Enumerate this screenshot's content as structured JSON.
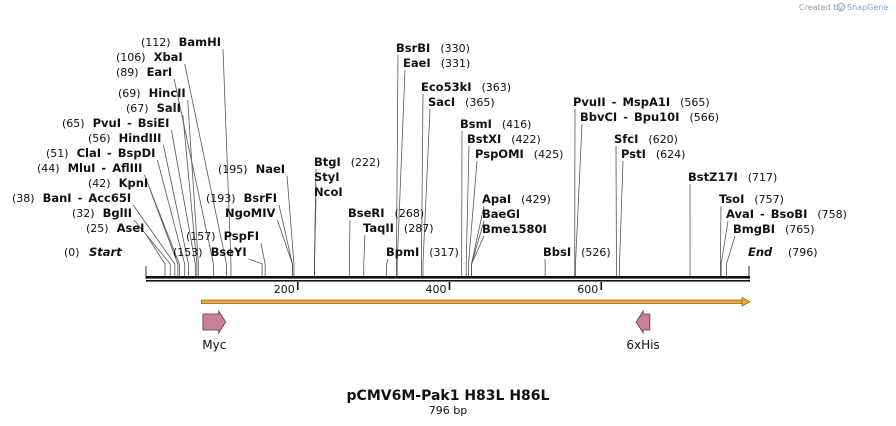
{
  "credit": {
    "label": "Created by",
    "brand": "SnapGene"
  },
  "map": {
    "title": "pCMV6M-Pak1 H83L H86L",
    "length_label": "796 bp",
    "length": 796,
    "start_label": "Start",
    "start_pos": "(0)",
    "end_label": "End",
    "end_pos": "(796)"
  },
  "ruler": {
    "ticks": [
      200,
      400,
      600
    ]
  },
  "sites": [
    {
      "pos": 25,
      "pos_label": "(25)",
      "names": [
        "AseI"
      ]
    },
    {
      "pos": 32,
      "pos_label": "(32)",
      "names": [
        "BglII"
      ]
    },
    {
      "pos": 38,
      "pos_label": "(38)",
      "names": [
        "BanI",
        "Acc65I"
      ]
    },
    {
      "pos": 42,
      "pos_label": "(42)",
      "names": [
        "KpnI"
      ]
    },
    {
      "pos": 44,
      "pos_label": "(44)",
      "names": [
        "MluI",
        "AflIII"
      ]
    },
    {
      "pos": 51,
      "pos_label": "(51)",
      "names": [
        "ClaI",
        "BspDI"
      ]
    },
    {
      "pos": 56,
      "pos_label": "(56)",
      "names": [
        "HindIII"
      ]
    },
    {
      "pos": 65,
      "pos_label": "(65)",
      "names": [
        "PvuI",
        "BsiEI"
      ]
    },
    {
      "pos": 67,
      "pos_label": "(67)",
      "names": [
        "SalI"
      ]
    },
    {
      "pos": 69,
      "pos_label": "(69)",
      "names": [
        "HincII"
      ]
    },
    {
      "pos": 89,
      "pos_label": "(89)",
      "names": [
        "EarI"
      ]
    },
    {
      "pos": 106,
      "pos_label": "(106)",
      "names": [
        "XbaI"
      ]
    },
    {
      "pos": 112,
      "pos_label": "(112)",
      "names": [
        "BamHI"
      ]
    },
    {
      "pos": 153,
      "pos_label": "(153)",
      "names": [
        "BseYI"
      ]
    },
    {
      "pos": 157,
      "pos_label": "(157)",
      "names": [
        "PspFI"
      ]
    },
    {
      "pos": 193,
      "pos_label": "(193)",
      "names": [
        "BsrFI"
      ]
    },
    {
      "pos": 193,
      "pos_label": "",
      "names": [
        "NgoMIV"
      ]
    },
    {
      "pos": 195,
      "pos_label": "(195)",
      "names": [
        "NaeI"
      ]
    },
    {
      "pos": 222,
      "pos_label": "(222)",
      "names": [
        "BtgI"
      ]
    },
    {
      "pos": 222,
      "pos_label": "",
      "names": [
        "StyI"
      ]
    },
    {
      "pos": 222,
      "pos_label": "",
      "names": [
        "NcoI"
      ]
    },
    {
      "pos": 268,
      "pos_label": "(268)",
      "names": [
        "BseRI"
      ]
    },
    {
      "pos": 287,
      "pos_label": "(287)",
      "names": [
        "TaqII"
      ]
    },
    {
      "pos": 317,
      "pos_label": "(317)",
      "names": [
        "BpmI"
      ]
    },
    {
      "pos": 330,
      "pos_label": "(330)",
      "names": [
        "BsrBI"
      ]
    },
    {
      "pos": 331,
      "pos_label": "(331)",
      "names": [
        "EaeI"
      ]
    },
    {
      "pos": 363,
      "pos_label": "(363)",
      "names": [
        "Eco53kI"
      ]
    },
    {
      "pos": 365,
      "pos_label": "(365)",
      "names": [
        "SacI"
      ]
    },
    {
      "pos": 416,
      "pos_label": "(416)",
      "names": [
        "BsmI"
      ]
    },
    {
      "pos": 422,
      "pos_label": "(422)",
      "names": [
        "BstXI"
      ]
    },
    {
      "pos": 425,
      "pos_label": "(425)",
      "names": [
        "PspOMI"
      ]
    },
    {
      "pos": 429,
      "pos_label": "(429)",
      "names": [
        "ApaI"
      ]
    },
    {
      "pos": 429,
      "pos_label": "",
      "names": [
        "BaeGI"
      ]
    },
    {
      "pos": 429,
      "pos_label": "",
      "names": [
        "Bme1580I"
      ]
    },
    {
      "pos": 526,
      "pos_label": "(526)",
      "names": [
        "BbsI"
      ]
    },
    {
      "pos": 565,
      "pos_label": "(565)",
      "names": [
        "PvuII",
        "MspA1I"
      ]
    },
    {
      "pos": 566,
      "pos_label": "(566)",
      "names": [
        "BbvCI",
        "Bpu10I"
      ]
    },
    {
      "pos": 620,
      "pos_label": "(620)",
      "names": [
        "SfcI"
      ]
    },
    {
      "pos": 624,
      "pos_label": "(624)",
      "names": [
        "PstI"
      ]
    },
    {
      "pos": 717,
      "pos_label": "(717)",
      "names": [
        "BstZ17I"
      ]
    },
    {
      "pos": 757,
      "pos_label": "(757)",
      "names": [
        "TsoI"
      ]
    },
    {
      "pos": 758,
      "pos_label": "(758)",
      "names": [
        "AvaI",
        "BsoBI"
      ]
    },
    {
      "pos": 765,
      "pos_label": "(765)",
      "names": [
        "BmgBI"
      ]
    }
  ],
  "orf": {
    "start": 73,
    "end": 796,
    "color": "#f0a830"
  },
  "features": [
    {
      "name": "Myc",
      "start": 75,
      "end": 105,
      "direction": "forward",
      "color": "#c9809b"
    },
    {
      "name": "6xHis",
      "start": 646,
      "end": 664,
      "direction": "reverse",
      "color": "#c9809b"
    }
  ]
}
